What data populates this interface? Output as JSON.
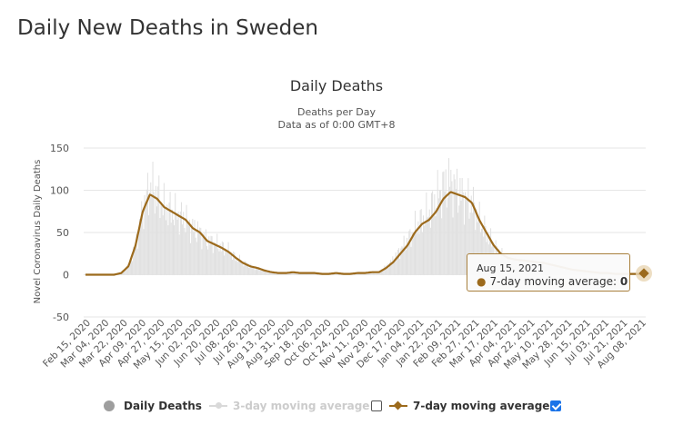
{
  "page": {
    "title": "Daily New Deaths in Sweden"
  },
  "chart_data": {
    "type": "bar",
    "title": "Daily Deaths",
    "subtitle_line1": "Deaths per Day",
    "subtitle_line2": "Data as of 0:00 GMT+8",
    "ylabel": "Novel Coronavirus Daily Deaths",
    "xlabel": "",
    "ylim": [
      -50,
      150
    ],
    "yticks": [
      -50,
      0,
      50,
      100,
      150
    ],
    "xticks": [
      "Feb 15, 2020",
      "Mar 04, 2020",
      "Mar 22, 2020",
      "Apr 09, 2020",
      "Apr 27, 2020",
      "May 15, 2020",
      "Jun 02, 2020",
      "Jun 20, 2020",
      "Jul 08, 2020",
      "Jul 26, 2020",
      "Aug 13, 2020",
      "Aug 31, 2020",
      "Sep 18, 2020",
      "Oct 06, 2020",
      "Oct 24, 2020",
      "Nov 11, 2020",
      "Nov 29, 2020",
      "Dec 17, 2020",
      "Jan 04, 2021",
      "Jan 22, 2021",
      "Feb 09, 2021",
      "Feb 27, 2021",
      "Mar 17, 2021",
      "Apr 04, 2021",
      "Apr 22, 2021",
      "May 10, 2021",
      "May 28, 2021",
      "Jun 15, 2021",
      "Jul 03, 2021",
      "Jul 21, 2021",
      "Aug 08, 2021"
    ],
    "x_start": "Feb 15, 2020",
    "x_end": "Aug 15, 2021",
    "grid": true,
    "legend_position": "bottom",
    "series": [
      {
        "name": "Daily Deaths",
        "kind": "bars",
        "color": "#e0e0e0",
        "approx_weekly_values": [
          0,
          0,
          0,
          0,
          0,
          2,
          10,
          35,
          75,
          105,
          95,
          80,
          75,
          70,
          65,
          55,
          50,
          40,
          38,
          33,
          28,
          20,
          15,
          10,
          8,
          5,
          3,
          2,
          2,
          3,
          2,
          2,
          2,
          1,
          1,
          2,
          1,
          1,
          2,
          2,
          3,
          3,
          10,
          18,
          30,
          40,
          55,
          65,
          75,
          90,
          105,
          110,
          100,
          90,
          85,
          65,
          50,
          35,
          25,
          20,
          18,
          17,
          16,
          15,
          14,
          12,
          10,
          8,
          6,
          5,
          4,
          3,
          2,
          2,
          1,
          1,
          1,
          1,
          0
        ]
      },
      {
        "name": "3-day moving average",
        "kind": "line",
        "color": "#d9d9d9",
        "visible": false
      },
      {
        "name": "7-day moving average",
        "kind": "line",
        "color": "#9c6a1c",
        "visible": true,
        "approx_weekly_values": [
          0,
          0,
          0,
          0,
          0,
          2,
          10,
          35,
          75,
          95,
          90,
          80,
          75,
          70,
          65,
          55,
          50,
          40,
          36,
          32,
          27,
          20,
          14,
          10,
          8,
          5,
          3,
          2,
          2,
          3,
          2,
          2,
          2,
          1,
          1,
          2,
          1,
          1,
          2,
          2,
          3,
          3,
          8,
          15,
          25,
          35,
          50,
          60,
          65,
          75,
          90,
          98,
          95,
          92,
          85,
          65,
          50,
          35,
          25,
          20,
          18,
          17,
          16,
          15,
          14,
          12,
          10,
          8,
          6,
          5,
          4,
          3,
          2,
          2,
          1,
          1,
          1,
          1,
          0
        ]
      }
    ],
    "legend": [
      {
        "label": "Daily Deaths",
        "checked": null,
        "style": "dot",
        "color": "#9e9e9e",
        "active": true
      },
      {
        "label": "3-day moving average",
        "checked": false,
        "style": "line-dot",
        "color": "#d9d9d9",
        "active": false
      },
      {
        "label": "7-day moving average",
        "checked": true,
        "style": "line-diamond",
        "color": "#9c6a1c",
        "active": true
      }
    ],
    "tooltip": {
      "date": "Aug 15, 2021",
      "series": "7-day moving average",
      "value": "0"
    }
  }
}
